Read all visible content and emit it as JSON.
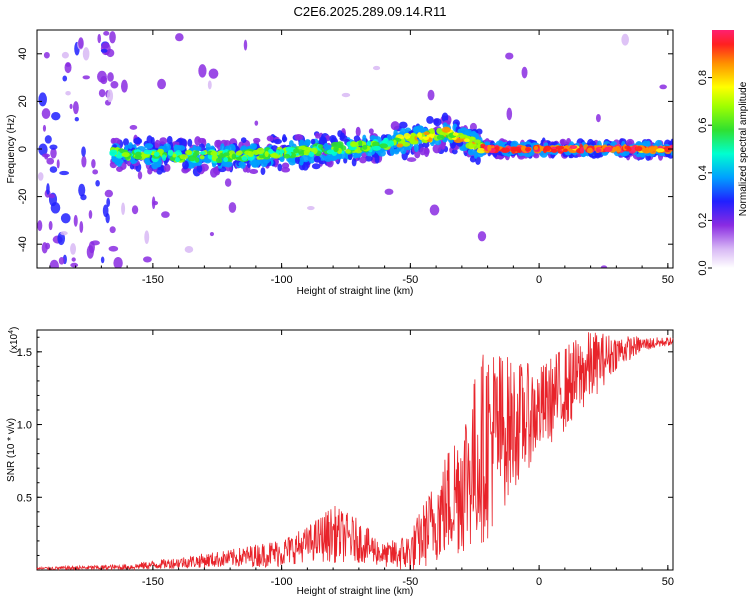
{
  "title": "C2E6.2025.289.09.14.R11",
  "colors": {
    "snr_line": "#e8232a",
    "axis": "#000000",
    "background": "#ffffff"
  },
  "chart_data": [
    {
      "type": "heatmap",
      "name": "spectrogram",
      "xlabel": "Height of straight line (km)",
      "ylabel": "Frequency (Hz)",
      "xlim": [
        -195,
        52
      ],
      "ylim": [
        -50,
        50
      ],
      "xticks": [
        -150,
        -100,
        -50,
        0,
        50
      ],
      "xtick_labels": [
        "-150",
        "-100",
        "-50",
        "0",
        "50"
      ],
      "yticks": [
        -40,
        -20,
        0,
        20,
        40
      ],
      "ytick_labels": [
        "-40",
        "-20",
        "0",
        "20",
        "40"
      ],
      "colorbar": {
        "label": "Normalized spectral amplitude",
        "range": [
          0,
          1
        ],
        "ticks": [
          0.0,
          0.2,
          0.4,
          0.6,
          0.8
        ],
        "tick_labels": [
          "0.0",
          "0.2",
          "0.4",
          "0.6",
          "0.8"
        ]
      },
      "ridge": {
        "description_points": [
          {
            "x": -165,
            "freq": -2
          },
          {
            "x": -140,
            "freq": -3
          },
          {
            "x": -120,
            "freq": -3
          },
          {
            "x": -100,
            "freq": -2
          },
          {
            "x": -80,
            "freq": 0
          },
          {
            "x": -60,
            "freq": 2
          },
          {
            "x": -45,
            "freq": 5
          },
          {
            "x": -35,
            "freq": 7
          },
          {
            "x": -25,
            "freq": 2
          },
          {
            "x": -20,
            "freq": 0
          },
          {
            "x": 0,
            "freq": 0
          },
          {
            "x": 50,
            "freq": 0
          }
        ]
      }
    },
    {
      "type": "line",
      "name": "snr",
      "xlabel": "Height of straight line (km)",
      "ylabel": "SNR (10 * v/v)",
      "yscale_note": "(x10",
      "yscale_exp": "4",
      "xlim": [
        -195,
        52
      ],
      "ylim": [
        0,
        1.65
      ],
      "xticks": [
        -150,
        -100,
        -50,
        0,
        50
      ],
      "xtick_labels": [
        "-150",
        "-100",
        "-50",
        "0",
        "50"
      ],
      "yticks": [
        0.5,
        1.0,
        1.5
      ],
      "ytick_labels": [
        "0.5",
        "1.0",
        "1.5"
      ],
      "envelope": {
        "x": [
          -195,
          -160,
          -140,
          -120,
          -100,
          -90,
          -80,
          -70,
          -60,
          -50,
          -40,
          -30,
          -20,
          -10,
          0,
          10,
          20,
          30,
          40,
          50
        ],
        "mean": [
          0.01,
          0.02,
          0.05,
          0.08,
          0.12,
          0.18,
          0.25,
          0.2,
          0.1,
          0.12,
          0.35,
          0.6,
          0.9,
          1.0,
          1.1,
          1.25,
          1.4,
          1.5,
          1.55,
          1.57
        ],
        "spread": [
          0.01,
          0.02,
          0.04,
          0.06,
          0.1,
          0.12,
          0.2,
          0.15,
          0.08,
          0.15,
          0.3,
          0.5,
          0.7,
          0.45,
          0.3,
          0.3,
          0.25,
          0.12,
          0.05,
          0.03
        ]
      }
    }
  ]
}
